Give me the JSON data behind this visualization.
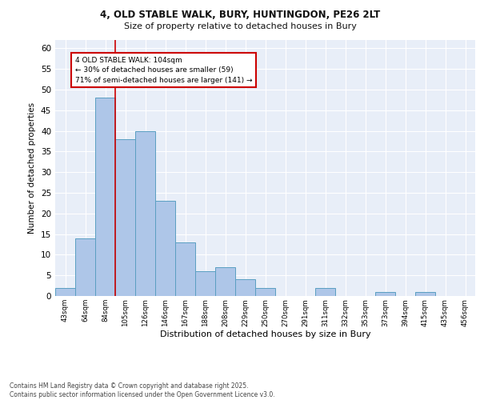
{
  "title_line1": "4, OLD STABLE WALK, BURY, HUNTINGDON, PE26 2LT",
  "title_line2": "Size of property relative to detached houses in Bury",
  "xlabel": "Distribution of detached houses by size in Bury",
  "ylabel": "Number of detached properties",
  "bar_labels": [
    "43sqm",
    "64sqm",
    "84sqm",
    "105sqm",
    "126sqm",
    "146sqm",
    "167sqm",
    "188sqm",
    "208sqm",
    "229sqm",
    "250sqm",
    "270sqm",
    "291sqm",
    "311sqm",
    "332sqm",
    "353sqm",
    "373sqm",
    "394sqm",
    "415sqm",
    "435sqm",
    "456sqm"
  ],
  "bar_values": [
    2,
    14,
    48,
    38,
    40,
    23,
    13,
    6,
    7,
    4,
    2,
    0,
    0,
    2,
    0,
    0,
    1,
    0,
    1,
    0,
    0
  ],
  "bar_color": "#aec6e8",
  "bar_edge_color": "#5a9fc2",
  "bg_color": "#e8eef8",
  "grid_color": "#ffffff",
  "vline_color": "#cc0000",
  "annotation_text": "4 OLD STABLE WALK: 104sqm\n← 30% of detached houses are smaller (59)\n71% of semi-detached houses are larger (141) →",
  "annotation_box_color": "#cc0000",
  "ylim": [
    0,
    62
  ],
  "yticks": [
    0,
    5,
    10,
    15,
    20,
    25,
    30,
    35,
    40,
    45,
    50,
    55,
    60
  ],
  "footer": "Contains HM Land Registry data © Crown copyright and database right 2025.\nContains public sector information licensed under the Open Government Licence v3.0."
}
